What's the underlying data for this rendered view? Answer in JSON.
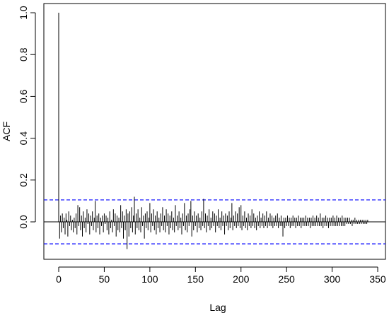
{
  "chart_data": {
    "type": "acf",
    "xlabel": "Lag",
    "ylabel": "ACF",
    "xlim": [
      -16.3,
      358.5
    ],
    "ylim": [
      -0.179,
      1.044
    ],
    "xticks": [
      0,
      50,
      100,
      150,
      200,
      250,
      300,
      350
    ],
    "yticks": [
      {
        "value": 0,
        "label": "0.0"
      },
      0.2,
      0.4,
      0.6,
      0.8,
      {
        "value": 1,
        "label": "1.0"
      }
    ],
    "color": "#000000",
    "ci_lines": {
      "values": [
        0.105,
        -0.105
      ],
      "color": "#0000ff"
    },
    "x": [
      0,
      1,
      2,
      3,
      4,
      5,
      6,
      7,
      8,
      9,
      10,
      11,
      12,
      13,
      14,
      15,
      16,
      17,
      18,
      19,
      20,
      21,
      22,
      23,
      24,
      25,
      26,
      27,
      28,
      29,
      30,
      31,
      32,
      33,
      34,
      35,
      36,
      37,
      38,
      39,
      40,
      41,
      42,
      43,
      44,
      45,
      46,
      47,
      48,
      49,
      50,
      51,
      52,
      53,
      54,
      55,
      56,
      57,
      58,
      59,
      60,
      61,
      62,
      63,
      64,
      65,
      66,
      67,
      68,
      69,
      70,
      71,
      72,
      73,
      74,
      75,
      76,
      77,
      78,
      79,
      80,
      81,
      82,
      83,
      84,
      85,
      86,
      87,
      88,
      89,
      90,
      91,
      92,
      93,
      94,
      95,
      96,
      97,
      98,
      99,
      100,
      101,
      102,
      103,
      104,
      105,
      106,
      107,
      108,
      109,
      110,
      111,
      112,
      113,
      114,
      115,
      116,
      117,
      118,
      119,
      120,
      121,
      122,
      123,
      124,
      125,
      126,
      127,
      128,
      129,
      130,
      131,
      132,
      133,
      134,
      135,
      136,
      137,
      138,
      139,
      140,
      141,
      142,
      143,
      144,
      145,
      146,
      147,
      148,
      149,
      150,
      151,
      152,
      153,
      154,
      155,
      156,
      157,
      158,
      159,
      160,
      161,
      162,
      163,
      164,
      165,
      166,
      167,
      168,
      169,
      170,
      171,
      172,
      173,
      174,
      175,
      176,
      177,
      178,
      179,
      180,
      181,
      182,
      183,
      184,
      185,
      186,
      187,
      188,
      189,
      190,
      191,
      192,
      193,
      194,
      195,
      196,
      197,
      198,
      199,
      200,
      201,
      202,
      203,
      204,
      205,
      206,
      207,
      208,
      209,
      210,
      211,
      212,
      213,
      214,
      215,
      216,
      217,
      218,
      219,
      220,
      221,
      222,
      223,
      224,
      225,
      226,
      227,
      228,
      229,
      230,
      231,
      232,
      233,
      234,
      235,
      236,
      237,
      238,
      239,
      240,
      241,
      242,
      243,
      244,
      245,
      246,
      247,
      248,
      249,
      250,
      251,
      252,
      253,
      254,
      255,
      256,
      257,
      258,
      259,
      260,
      261,
      262,
      263,
      264,
      265,
      266,
      267,
      268,
      269,
      270,
      271,
      272,
      273,
      274,
      275,
      276,
      277,
      278,
      279,
      280,
      281,
      282,
      283,
      284,
      285,
      286,
      287,
      288,
      289,
      290,
      291,
      292,
      293,
      294,
      295,
      296,
      297,
      298,
      299,
      300,
      301,
      302,
      303,
      304,
      305,
      306,
      307,
      308,
      309,
      310,
      311,
      312,
      313,
      314,
      315,
      316,
      317,
      318,
      319,
      320,
      321,
      322,
      323,
      324,
      325,
      326,
      327,
      328,
      329,
      330,
      331,
      332,
      333,
      334,
      335,
      336,
      337,
      338,
      339
    ],
    "values": [
      1.0,
      -0.08,
      0.03,
      -0.05,
      0.04,
      -0.03,
      0.02,
      -0.06,
      0.04,
      0.01,
      -0.07,
      0.05,
      -0.02,
      0.03,
      -0.04,
      0.01,
      -0.05,
      0.02,
      -0.03,
      0.04,
      -0.06,
      0.08,
      -0.02,
      0.07,
      -0.04,
      0.03,
      -0.07,
      0.05,
      -0.03,
      0.02,
      -0.05,
      0.06,
      -0.01,
      0.04,
      -0.06,
      0.03,
      -0.02,
      0.05,
      -0.04,
      0.02,
      0.1,
      -0.05,
      0.03,
      -0.03,
      0.04,
      -0.06,
      0.02,
      -0.02,
      0.03,
      -0.05,
      0.04,
      -0.01,
      0.03,
      -0.04,
      0.02,
      -0.06,
      0.05,
      -0.03,
      0.01,
      -0.05,
      0.06,
      -0.02,
      0.04,
      -0.07,
      0.03,
      -0.04,
      0.02,
      -0.05,
      0.08,
      -0.03,
      0.05,
      -0.08,
      0.03,
      -0.04,
      0.06,
      -0.13,
      0.04,
      -0.07,
      0.05,
      -0.03,
      0.07,
      -0.05,
      0.03,
      0.12,
      -0.06,
      0.04,
      -0.03,
      0.06,
      -0.04,
      0.02,
      -0.05,
      0.07,
      -0.02,
      0.03,
      -0.08,
      0.04,
      -0.03,
      0.05,
      -0.04,
      0.02,
      0.09,
      -0.05,
      0.04,
      -0.02,
      0.06,
      -0.04,
      0.03,
      -0.06,
      0.05,
      -0.03,
      0.02,
      -0.05,
      0.04,
      -0.02,
      0.07,
      -0.04,
      0.03,
      -0.05,
      0.06,
      -0.02,
      0.04,
      -0.06,
      0.03,
      -0.03,
      0.05,
      -0.04,
      0.02,
      -0.05,
      0.08,
      -0.02,
      0.03,
      -0.04,
      0.05,
      -0.03,
      0.02,
      -0.06,
      0.04,
      -0.02,
      0.09,
      -0.04,
      0.03,
      -0.05,
      0.04,
      -0.02,
      0.06,
      0.1,
      -0.07,
      0.03,
      -0.04,
      0.05,
      -0.02,
      0.03,
      -0.05,
      0.04,
      -0.03,
      0.02,
      -0.04,
      0.05,
      -0.02,
      0.11,
      -0.03,
      0.04,
      -0.05,
      0.03,
      -0.02,
      0.06,
      -0.04,
      0.02,
      -0.03,
      0.05,
      -0.02,
      0.04,
      -0.05,
      0.03,
      -0.02,
      0.06,
      -0.03,
      0.02,
      -0.04,
      0.05,
      -0.02,
      0.03,
      -0.06,
      0.04,
      -0.02,
      0.03,
      -0.04,
      0.05,
      -0.03,
      0.02,
      0.09,
      -0.04,
      0.03,
      -0.02,
      0.05,
      -0.03,
      0.04,
      -0.02,
      0.07,
      -0.03,
      0.08,
      -0.04,
      0.03,
      -0.02,
      0.05,
      -0.03,
      0.02,
      -0.04,
      0.04,
      -0.02,
      0.03,
      -0.03,
      0.06,
      -0.02,
      0.04,
      -0.03,
      0.02,
      -0.04,
      0.03,
      -0.02,
      0.05,
      -0.03,
      0.02,
      -0.02,
      0.04,
      -0.03,
      0.03,
      -0.02,
      0.05,
      -0.03,
      0.02,
      -0.02,
      0.04,
      -0.02,
      0.03,
      -0.03,
      0.02,
      -0.02,
      0.03,
      -0.02,
      0.04,
      -0.03,
      0.02,
      -0.02,
      0.03,
      -0.02,
      -0.07,
      0.02,
      -0.03,
      0.02,
      -0.02,
      0.03,
      -0.02,
      0.02,
      -0.03,
      0.02,
      -0.02,
      0.03,
      -0.02,
      0.02,
      -0.03,
      0.02,
      -0.02,
      0.03,
      -0.02,
      0.02,
      -0.03,
      0.02,
      -0.02,
      0.02,
      -0.02,
      0.03,
      -0.02,
      0.02,
      -0.02,
      0.02,
      -0.03,
      0.02,
      -0.02,
      0.03,
      -0.02,
      0.02,
      -0.02,
      0.03,
      -0.02,
      0.02,
      -0.02,
      0.04,
      -0.02,
      0.02,
      -0.03,
      0.02,
      -0.02,
      0.03,
      -0.02,
      0.02,
      -0.03,
      0.02,
      -0.02,
      0.02,
      -0.02,
      0.03,
      -0.02,
      0.02,
      -0.02,
      0.03,
      -0.02,
      0.02,
      -0.02,
      0.02,
      -0.02,
      0.03,
      -0.02,
      0.02,
      -0.02,
      0.02,
      -0.01,
      0.02,
      -0.01,
      0.02,
      -0.01,
      0.01,
      -0.02,
      0.01,
      -0.01,
      0.02,
      -0.01,
      0.01,
      -0.01,
      0.01,
      -0.01,
      0.01,
      -0.01,
      0.01,
      -0.01,
      0.01,
      -0.01,
      0.01,
      -0.01,
      0.01
    ]
  }
}
